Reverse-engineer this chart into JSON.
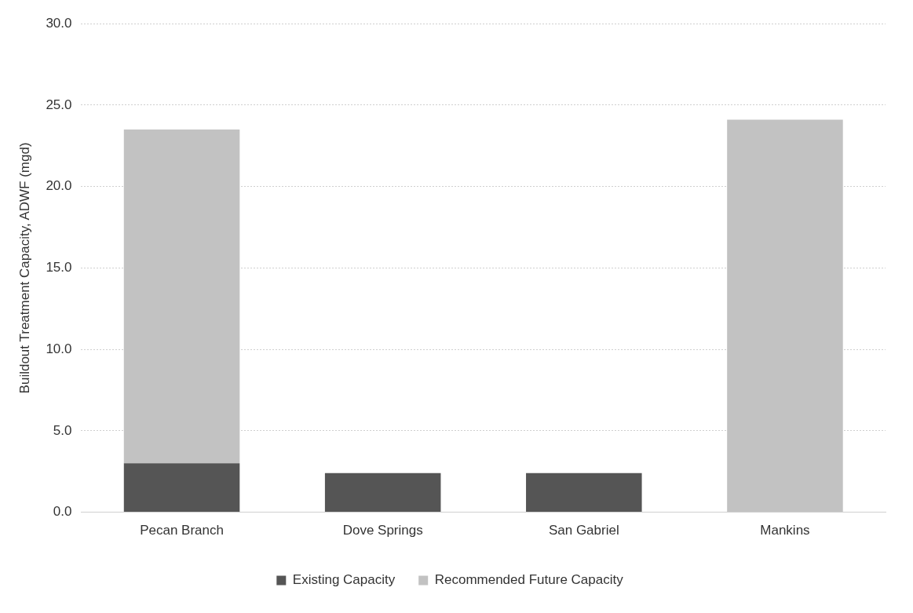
{
  "chart_data": {
    "type": "bar",
    "stacked": true,
    "ylabel": "Buildout Treatment Capacity, ADWF (mgd)",
    "categories": [
      "Pecan Branch",
      "Dove Springs",
      "San Gabriel",
      "Mankins"
    ],
    "series": [
      {
        "name": "Existing Capacity",
        "color": "#555555",
        "values": [
          3.0,
          2.4,
          2.4,
          null
        ]
      },
      {
        "name": "Recommended Future Capacity",
        "color": "#c2c2c2",
        "values": [
          20.5,
          null,
          null,
          24.1
        ]
      }
    ],
    "ylim": [
      0,
      30
    ],
    "yticks": [
      {
        "value": 0,
        "label": "0.0"
      },
      {
        "value": 5,
        "label": "5.0"
      },
      {
        "value": 10,
        "label": "10.0"
      },
      {
        "value": 15,
        "label": "15.0"
      },
      {
        "value": 20,
        "label": "20.0"
      },
      {
        "value": 25,
        "label": "25.0"
      },
      {
        "value": 30,
        "label": "30.0"
      }
    ],
    "grid": "y",
    "legend": "bottom"
  }
}
